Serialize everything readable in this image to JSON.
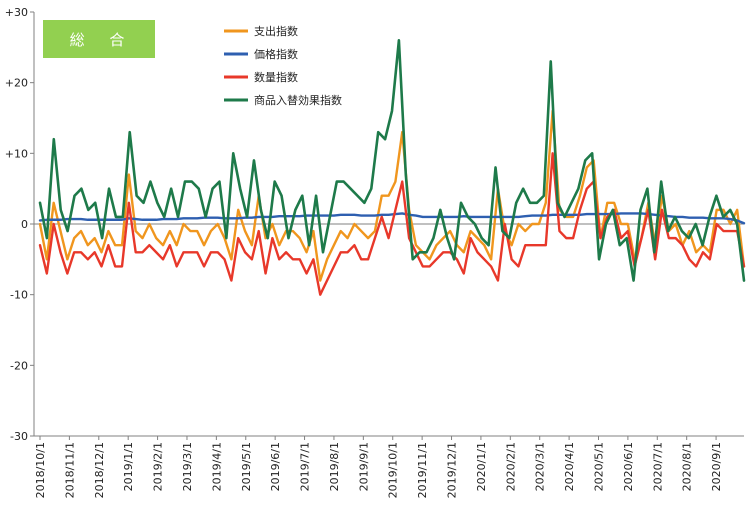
{
  "chart_data": {
    "type": "line",
    "title": "",
    "badge": "総 合",
    "badge_color": "#92D050",
    "xlabel": "",
    "ylabel": "",
    "ylim": [
      -30,
      30
    ],
    "yticks": [
      30,
      20,
      10,
      0,
      -10,
      -20,
      -30
    ],
    "ytick_labels": [
      "+30",
      "+20",
      "+10",
      "0",
      "-10",
      "-20",
      "-30"
    ],
    "grid": false,
    "legend_position": "top-left-inside",
    "x_tick_labels": [
      "2018/10/1",
      "2018/11/1",
      "2018/12/1",
      "2019/1/1",
      "2019/2/1",
      "2019/3/1",
      "2019/4/1",
      "2019/5/1",
      "2019/6/1",
      "2019/7/1",
      "2019/8/1",
      "2019/9/1",
      "2019/10/1",
      "2019/11/1",
      "2019/12/1",
      "2020/1/1",
      "2020/2/1",
      "2020/3/1",
      "2020/4/1",
      "2020/5/1",
      "2020/6/1",
      "2020/7/1",
      "2020/8/1",
      "2020/9/1"
    ],
    "series": [
      {
        "name": "支出指数",
        "color": "#F0961E",
        "values": [
          0,
          -5,
          3,
          -1,
          -5,
          -2,
          -1,
          -3,
          -2,
          -4,
          -1,
          -3,
          -3,
          7,
          -1,
          -2,
          0,
          -2,
          -3,
          -1,
          -3,
          0,
          -1,
          -1,
          -3,
          -1,
          0,
          -2,
          -5,
          2,
          -1,
          -3,
          4,
          -2,
          0,
          -3,
          -1,
          -1,
          -2,
          -4,
          -1,
          -8,
          -5,
          -3,
          -1,
          -2,
          0,
          -1,
          -2,
          -1,
          4,
          4,
          6,
          13,
          2,
          -3,
          -4,
          -5,
          -3,
          -2,
          -1,
          -3,
          -4,
          -1,
          -2,
          -3,
          -5,
          5,
          -1,
          -3,
          0,
          -1,
          0,
          0,
          3,
          16,
          2,
          1,
          1,
          4,
          8,
          9,
          -2,
          3,
          3,
          0,
          0,
          -5,
          -2,
          3,
          -3,
          4,
          -1,
          0,
          -3,
          -1,
          -4,
          -3,
          -4,
          2,
          2,
          0,
          2,
          -6
        ]
      },
      {
        "name": "価格指数",
        "color": "#2E5FB0",
        "values": [
          0.5,
          0.6,
          0.6,
          0.6,
          0.7,
          0.7,
          0.7,
          0.6,
          0.6,
          0.6,
          0.6,
          0.6,
          0.6,
          0.8,
          0.7,
          0.6,
          0.6,
          0.6,
          0.7,
          0.7,
          0.7,
          0.8,
          0.8,
          0.8,
          0.9,
          0.9,
          0.9,
          0.8,
          0.8,
          0.8,
          0.9,
          0.9,
          1.0,
          1.0,
          1.0,
          1.1,
          1.1,
          1.1,
          1.1,
          1.2,
          1.2,
          1.2,
          1.2,
          1.2,
          1.3,
          1.3,
          1.3,
          1.2,
          1.2,
          1.2,
          1.3,
          1.3,
          1.4,
          1.5,
          1.3,
          1.2,
          1.0,
          1.0,
          1.0,
          1.0,
          1.0,
          1.0,
          1.1,
          1.0,
          1.0,
          1.0,
          1.0,
          1.0,
          1.0,
          1.0,
          1.0,
          1.1,
          1.2,
          1.2,
          1.2,
          1.3,
          1.3,
          1.3,
          1.3,
          1.3,
          1.4,
          1.4,
          1.4,
          1.4,
          1.4,
          1.5,
          1.5,
          1.5,
          1.5,
          1.4,
          1.3,
          1.2,
          1.1,
          1.0,
          1.0,
          0.9,
          0.9,
          0.9,
          0.8,
          0.8,
          0.8,
          0.7,
          0.5,
          0.1
        ]
      },
      {
        "name": "数量指数",
        "color": "#E8382A",
        "values": [
          -3,
          -7,
          0,
          -4,
          -7,
          -4,
          -4,
          -5,
          -4,
          -6,
          -3,
          -6,
          -6,
          3,
          -4,
          -4,
          -3,
          -4,
          -5,
          -3,
          -6,
          -4,
          -4,
          -4,
          -6,
          -4,
          -4,
          -5,
          -8,
          -2,
          -4,
          -5,
          -1,
          -7,
          -2,
          -5,
          -4,
          -5,
          -5,
          -7,
          -5,
          -10,
          -8,
          -6,
          -4,
          -4,
          -3,
          -5,
          -5,
          -2,
          1,
          -2,
          2,
          6,
          -2,
          -4,
          -6,
          -6,
          -5,
          -4,
          -4,
          -5,
          -7,
          -2,
          -4,
          -5,
          -6,
          -8,
          0,
          -5,
          -6,
          -3,
          -3,
          -3,
          -3,
          10,
          -1,
          -2,
          -2,
          2,
          5,
          6,
          -2,
          1,
          2,
          -2,
          -1,
          -6,
          -2,
          2,
          -5,
          2,
          -2,
          -2,
          -3,
          -5,
          -6,
          -4,
          -5,
          0,
          -1,
          -1,
          -1,
          -6
        ]
      },
      {
        "name": "商品入替効果指数",
        "color": "#1E7A4A",
        "values": [
          3,
          -2,
          12,
          2,
          -1,
          4,
          5,
          2,
          3,
          -2,
          5,
          1,
          1,
          13,
          4,
          3,
          6,
          3,
          1,
          5,
          1,
          6,
          6,
          5,
          1,
          5,
          6,
          -2,
          10,
          5,
          1,
          9,
          2,
          -2,
          6,
          4,
          -2,
          2,
          4,
          -3,
          4,
          -4,
          1,
          6,
          6,
          5,
          4,
          3,
          5,
          13,
          12,
          16,
          26,
          7,
          -5,
          -4,
          -4,
          -2,
          2,
          -2,
          -5,
          3,
          1,
          0,
          -2,
          -3,
          8,
          -1,
          -2,
          3,
          5,
          3,
          3,
          4,
          23,
          3,
          1,
          3,
          5,
          9,
          10,
          -5,
          0,
          2,
          -3,
          -2,
          -8,
          2,
          5,
          -4,
          6,
          -1,
          1,
          -1,
          -2,
          0,
          -3,
          1,
          4,
          1,
          2,
          0,
          -8
        ]
      }
    ]
  }
}
